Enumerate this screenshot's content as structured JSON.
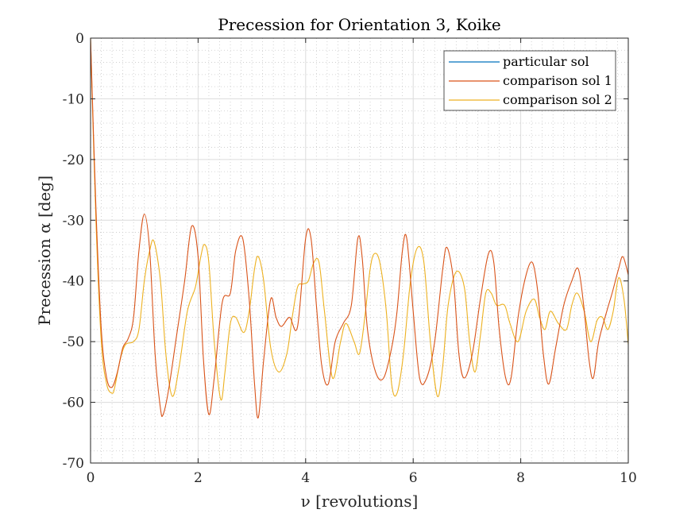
{
  "chart_data": {
    "type": "line",
    "title": "Precession for Orientation 3, Koike",
    "xlabel": "ν [revolutions]",
    "ylabel": "Precession α [deg]",
    "xlim": [
      0,
      10
    ],
    "ylim": [
      -70,
      0
    ],
    "xticks": [
      0,
      2,
      4,
      6,
      8,
      10
    ],
    "yticks": [
      0,
      -10,
      -20,
      -30,
      -40,
      -50,
      -60,
      -70
    ],
    "grid": true,
    "minor_grid": true,
    "legend_position": "top-right",
    "series": [
      {
        "name": "particular sol",
        "color": "#0072BD",
        "x": [
          0,
          10
        ],
        "y": [
          0,
          0
        ]
      },
      {
        "name": "comparison sol 1",
        "color": "#D95319",
        "x": [
          0,
          0.1,
          0.2,
          0.3,
          0.4,
          0.5,
          0.6,
          0.7,
          0.8,
          0.9,
          1.0,
          1.1,
          1.2,
          1.3,
          1.35,
          1.45,
          1.6,
          1.75,
          1.88,
          2.0,
          2.1,
          2.2,
          2.3,
          2.45,
          2.6,
          2.7,
          2.83,
          2.95,
          3.05,
          3.12,
          3.22,
          3.35,
          3.45,
          3.55,
          3.7,
          3.85,
          4.0,
          4.1,
          4.2,
          4.3,
          4.42,
          4.55,
          4.7,
          4.85,
          4.97,
          5.05,
          5.15,
          5.3,
          5.45,
          5.6,
          5.7,
          5.8,
          5.88,
          6.0,
          6.12,
          6.25,
          6.4,
          6.55,
          6.63,
          6.75,
          6.85,
          6.95,
          7.1,
          7.25,
          7.4,
          7.5,
          7.6,
          7.72,
          7.82,
          7.95,
          8.1,
          8.22,
          8.32,
          8.42,
          8.52,
          8.65,
          8.8,
          8.95,
          9.07,
          9.17,
          9.27,
          9.35,
          9.45,
          9.6,
          9.7,
          9.82,
          9.9,
          10.0
        ],
        "y": [
          0,
          -28,
          -48,
          -56,
          -57.5,
          -55,
          -51,
          -49.5,
          -46,
          -35,
          -29,
          -35,
          -52,
          -61,
          -62,
          -58,
          -49,
          -40,
          -31,
          -36,
          -53,
          -62,
          -56,
          -43.5,
          -42,
          -35,
          -33,
          -43,
          -57,
          -62.5,
          -53,
          -43,
          -46,
          -47.5,
          -46,
          -47.5,
          -33,
          -33,
          -44,
          -54,
          -57,
          -50,
          -47,
          -44,
          -33,
          -36,
          -48,
          -55,
          -56,
          -51,
          -45,
          -35,
          -33,
          -45,
          -56,
          -56,
          -50,
          -38,
          -34.5,
          -40,
          -52,
          -56,
          -52,
          -43,
          -35.5,
          -37,
          -48,
          -56,
          -56,
          -46,
          -39,
          -37,
          -42,
          -52,
          -57,
          -51,
          -44,
          -40,
          -38,
          -44,
          -53,
          -56,
          -50,
          -45,
          -42,
          -38,
          -36,
          -39
        ]
      },
      {
        "name": "comparison sol 2",
        "color": "#EDB120",
        "x": [
          0,
          0.1,
          0.2,
          0.3,
          0.4,
          0.45,
          0.55,
          0.65,
          0.8,
          0.9,
          1.0,
          1.1,
          1.18,
          1.3,
          1.4,
          1.52,
          1.65,
          1.8,
          1.95,
          2.05,
          2.12,
          2.2,
          2.3,
          2.42,
          2.5,
          2.6,
          2.7,
          2.85,
          2.95,
          3.05,
          3.12,
          3.22,
          3.35,
          3.5,
          3.65,
          3.75,
          3.85,
          3.95,
          4.05,
          4.15,
          4.25,
          4.35,
          4.5,
          4.65,
          4.75,
          4.9,
          5.0,
          5.1,
          5.2,
          5.28,
          5.38,
          5.5,
          5.6,
          5.7,
          5.82,
          5.95,
          6.08,
          6.2,
          6.32,
          6.45,
          6.55,
          6.65,
          6.8,
          6.95,
          7.05,
          7.15,
          7.25,
          7.35,
          7.45,
          7.55,
          7.7,
          7.8,
          7.95,
          8.1,
          8.25,
          8.35,
          8.45,
          8.55,
          8.7,
          8.85,
          8.95,
          9.05,
          9.18,
          9.3,
          9.42,
          9.52,
          9.62,
          9.72,
          9.82,
          9.92,
          10.0
        ],
        "y": [
          0,
          -30,
          -50,
          -57,
          -58.5,
          -57.5,
          -53,
          -50.5,
          -50,
          -48,
          -40,
          -35,
          -33.5,
          -40,
          -52,
          -59,
          -54,
          -45,
          -41,
          -36,
          -34,
          -37,
          -50,
          -59.5,
          -55,
          -47,
          -46,
          -48.5,
          -45,
          -38,
          -36,
          -40,
          -51,
          -55,
          -52,
          -46,
          -41,
          -40.5,
          -40,
          -37,
          -37,
          -45,
          -56,
          -50,
          -47,
          -50,
          -52,
          -46,
          -38,
          -35.5,
          -37,
          -45,
          -57,
          -58.5,
          -52,
          -40,
          -34.5,
          -37,
          -50,
          -59,
          -54,
          -44,
          -38.5,
          -41,
          -50,
          -55,
          -49,
          -42,
          -42,
          -44,
          -44,
          -47,
          -50,
          -45,
          -43,
          -46,
          -48,
          -45,
          -47,
          -48,
          -44,
          -42,
          -45,
          -50,
          -46.5,
          -46,
          -48,
          -45,
          -39.5,
          -43,
          -50.5
        ]
      }
    ]
  }
}
